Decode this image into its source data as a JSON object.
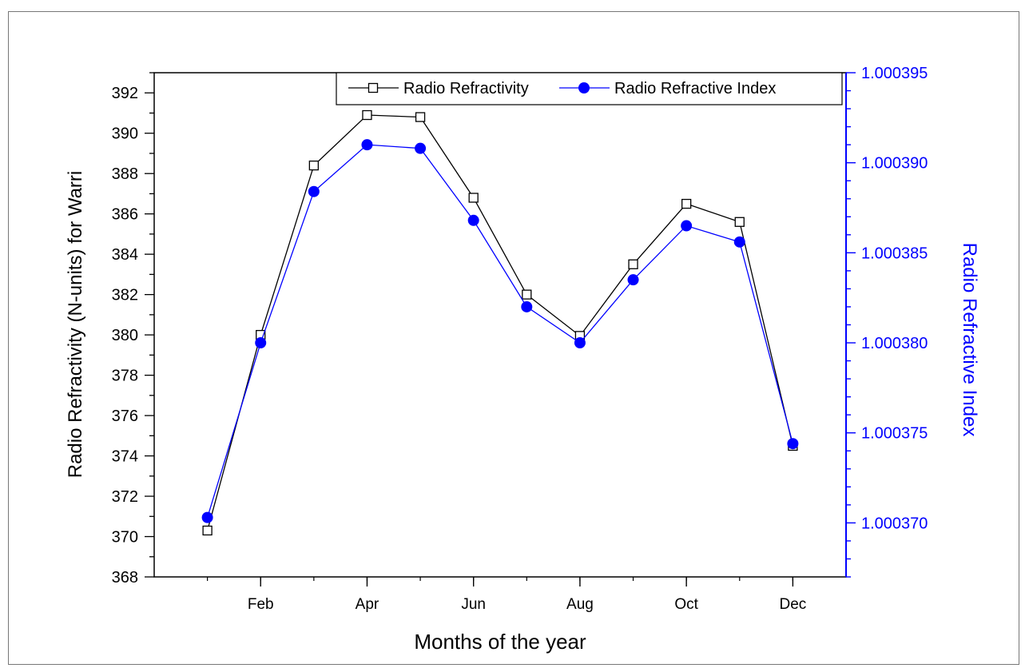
{
  "chart_data": {
    "type": "line",
    "title": "",
    "xlabel": "Months of the year",
    "ylabel": "Radio Refractivity (N-units) for Warri",
    "y2label": "Radio Refractive Index",
    "x": [
      1,
      2,
      3,
      4,
      5,
      6,
      7,
      8,
      9,
      10,
      11,
      12
    ],
    "x_ticks": [
      {
        "x": 2,
        "label": "Feb"
      },
      {
        "x": 4,
        "label": "Apr"
      },
      {
        "x": 6,
        "label": "Jun"
      },
      {
        "x": 8,
        "label": "Aug"
      },
      {
        "x": 10,
        "label": "Oct"
      },
      {
        "x": 12,
        "label": "Dec"
      }
    ],
    "xlim": [
      0,
      13
    ],
    "ylim": [
      368,
      393
    ],
    "y_ticks": [
      "368",
      "370",
      "372",
      "374",
      "376",
      "378",
      "380",
      "382",
      "384",
      "386",
      "388",
      "390",
      "392"
    ],
    "y2lim": [
      1.000367,
      1.000395
    ],
    "y2_ticks": [
      "1.000370",
      "1.000375",
      "1.000380",
      "1.000385",
      "1.000390",
      "1.000395"
    ],
    "series": [
      {
        "name": "Radio Refractivity",
        "axis": "left",
        "marker": "open-square",
        "color": "#000000",
        "values": [
          370.3,
          380.0,
          388.4,
          390.9,
          390.8,
          386.8,
          382.0,
          379.95,
          383.5,
          386.5,
          385.6,
          374.5
        ]
      },
      {
        "name": "Radio Refractive Index",
        "axis": "right",
        "marker": "filled-circle",
        "color": "#0000ff",
        "values": [
          1.0003703,
          1.00038,
          1.0003884,
          1.000391,
          1.0003908,
          1.0003868,
          1.000382,
          1.00038,
          1.0003835,
          1.0003865,
          1.0003856,
          1.0003744
        ]
      }
    ],
    "legend_position": "top",
    "grid": false
  }
}
